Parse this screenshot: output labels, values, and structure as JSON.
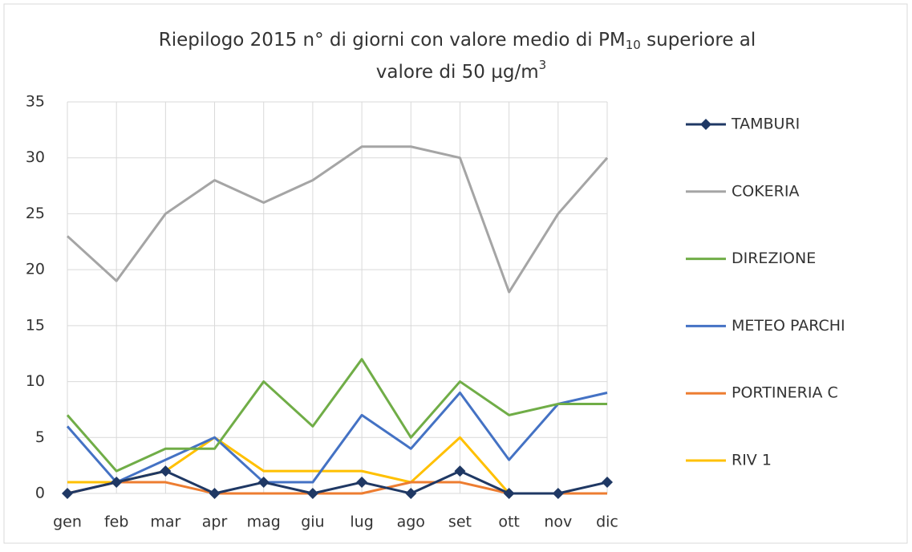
{
  "chart_data": {
    "type": "line",
    "title_parts": [
      "Riepilogo 2015  n° di giorni con valore medio di PM",
      "10",
      " superiore al",
      "valore di 50 µg/m",
      "3"
    ],
    "categories": [
      "gen",
      "feb",
      "mar",
      "apr",
      "mag",
      "giu",
      "lug",
      "ago",
      "set",
      "ott",
      "nov",
      "dic"
    ],
    "series": [
      {
        "name": "TAMBURI",
        "color": "#1f3864",
        "marker": "diamond",
        "values": [
          0,
          1,
          2,
          0,
          1,
          0,
          1,
          0,
          2,
          0,
          0,
          1
        ]
      },
      {
        "name": "COKERIA",
        "color": "#a5a5a5",
        "values": [
          23,
          19,
          25,
          28,
          26,
          28,
          31,
          31,
          30,
          18,
          25,
          30
        ]
      },
      {
        "name": "DIREZIONE",
        "color": "#70ad47",
        "values": [
          7,
          2,
          4,
          4,
          10,
          6,
          12,
          5,
          10,
          7,
          8,
          8
        ]
      },
      {
        "name": "METEO PARCHI",
        "color": "#4472c4",
        "values": [
          6,
          1,
          3,
          5,
          1,
          1,
          7,
          4,
          9,
          3,
          8,
          9
        ]
      },
      {
        "name": "PORTINERIA C",
        "color": "#ed7d31",
        "values": [
          0,
          1,
          1,
          0,
          0,
          0,
          0,
          1,
          1,
          0,
          0,
          0
        ]
      },
      {
        "name": "RIV 1",
        "color": "#ffc000",
        "values": [
          1,
          1,
          2,
          5,
          2,
          2,
          2,
          1,
          5,
          0,
          0,
          0
        ]
      }
    ],
    "ylim": [
      0,
      35
    ],
    "yticks": [
      0,
      5,
      10,
      15,
      20,
      25,
      30,
      35
    ],
    "grid": true,
    "legend": "right"
  }
}
